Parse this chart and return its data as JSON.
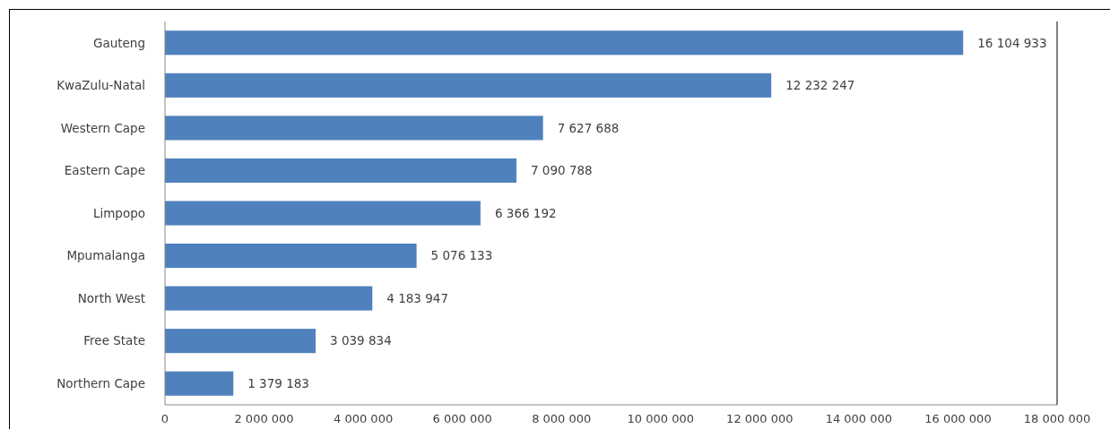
{
  "chart_data": {
    "type": "bar",
    "orientation": "horizontal",
    "categories": [
      "Gauteng",
      "KwaZulu-Natal",
      "Western Cape",
      "Eastern Cape",
      "Limpopo",
      "Mpumalanga",
      "North West",
      "Free State",
      "Northern Cape"
    ],
    "values": [
      16104933,
      12232247,
      7627688,
      7090788,
      6366192,
      5076133,
      4183947,
      3039834,
      1379183
    ],
    "color": "#4f81bd",
    "xlim": [
      0,
      18000000
    ],
    "xticks": [
      0,
      {
        "value": 2000000,
        "label": "2 000 000"
      },
      {
        "value": 4000000,
        "label": "4 000 000"
      },
      {
        "value": 6000000,
        "label": "6 000 000"
      },
      {
        "value": 8000000,
        "label": "8 000 000"
      },
      {
        "value": 10000000,
        "label": "10 000 000"
      },
      {
        "value": 12000000,
        "label": "12 000 000"
      },
      {
        "value": 14000000,
        "label": "14 000 000"
      },
      {
        "value": 16000000,
        "label": "16 000 000"
      },
      {
        "value": 18000000,
        "label": "18 000 000"
      }
    ],
    "data_labels": true,
    "grid": false
  }
}
